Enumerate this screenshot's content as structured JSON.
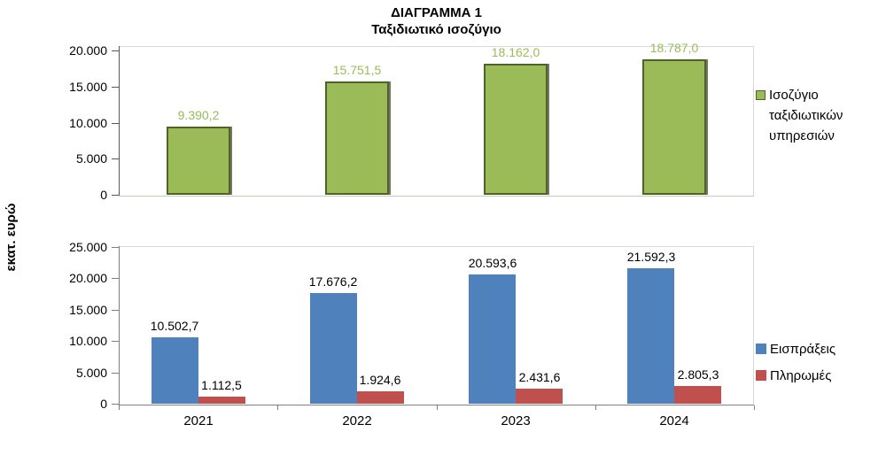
{
  "page": {
    "title": "ΔΙΑΓΡΑΜΜΑ 1",
    "subtitle": "Ταξιδιωτικό ισοζύγιο",
    "y_axis_title": "εκατ. ευρώ"
  },
  "colors": {
    "green": "#9BBB59",
    "green_border": "#4F6228",
    "blue": "#4F81BD",
    "red": "#C0504D",
    "axis_dark": "#595959",
    "axis_light": "#C6C9BC",
    "axis_gray": "#7F7F7F",
    "green_label": "#9BBB59"
  },
  "chart_data": [
    {
      "type": "bar",
      "name": "travel-balance",
      "categories": [
        "2021",
        "2022",
        "2023",
        "2024"
      ],
      "series": [
        {
          "name": "Ισοζύγιο ταξιδιωτικών υπηρεσιών",
          "color": "#9BBB59",
          "values": [
            9390.2,
            15751.5,
            18162.0,
            18787.0
          ],
          "labels": [
            "9.390,2",
            "15.751,5",
            "18.162,0",
            "18.787,0"
          ]
        }
      ],
      "ylim": [
        0,
        20000
      ],
      "ytick_labels": [
        "0",
        "5.000",
        "10.000",
        "15.000",
        "20.000"
      ],
      "grid": false,
      "legend_position": "right",
      "show_x_tick_labels": false
    },
    {
      "type": "bar",
      "name": "receipts-payments",
      "categories": [
        "2021",
        "2022",
        "2023",
        "2024"
      ],
      "series": [
        {
          "name": "Εισπράξεις",
          "color": "#4F81BD",
          "values": [
            10502.7,
            17676.2,
            20593.6,
            21592.3
          ],
          "labels": [
            "10.502,7",
            "17.676,2",
            "20.593,6",
            "21.592,3"
          ]
        },
        {
          "name": "Πληρωμές",
          "color": "#C0504D",
          "values": [
            1112.5,
            1924.6,
            2431.6,
            2805.3
          ],
          "labels": [
            "1.112,5",
            "1.924,6",
            "2.431,6",
            "2.805,3"
          ]
        }
      ],
      "ylim": [
        0,
        25000
      ],
      "ytick_labels": [
        "0",
        "5.000",
        "10.000",
        "15.000",
        "20.000",
        "25.000"
      ],
      "grid": false,
      "legend_position": "right",
      "show_x_tick_labels": true
    }
  ]
}
